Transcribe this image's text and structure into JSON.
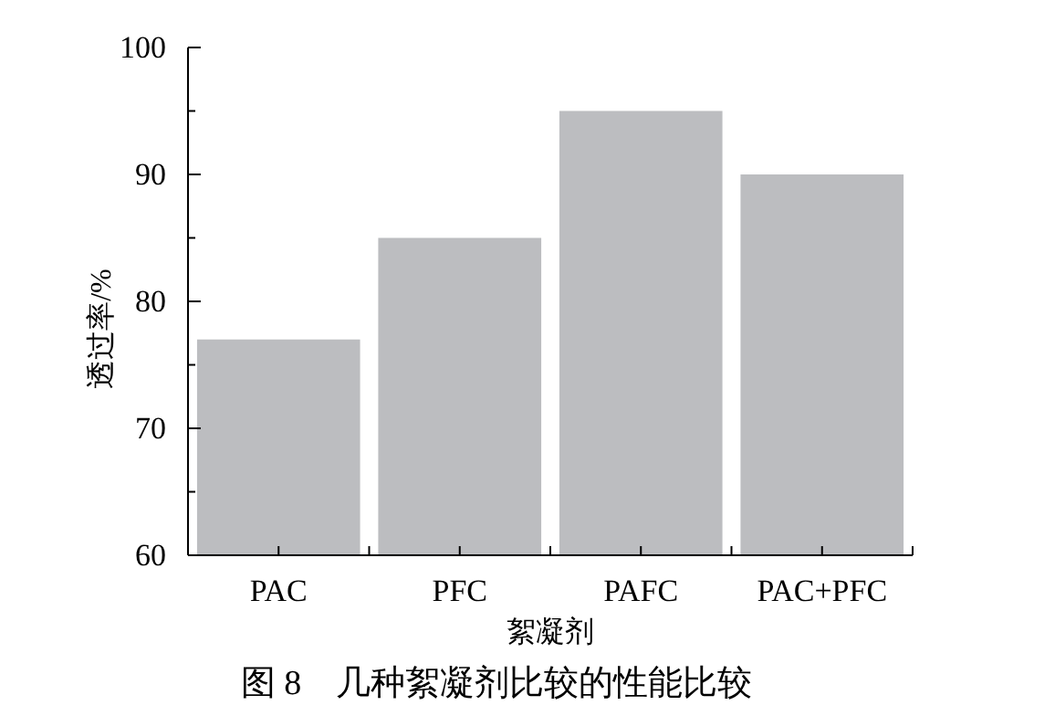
{
  "chart_data": {
    "type": "bar",
    "title": "图 8　几种絮凝剂比较的性能比较",
    "xlabel": "絮凝剂",
    "ylabel": "透过率/%",
    "categories": [
      "PAC",
      "PFC",
      "PAFC",
      "PAC+PFC"
    ],
    "values": [
      77,
      85,
      95,
      90
    ],
    "color": "#bcbdc0",
    "ylim": [
      60,
      100
    ],
    "yticks": [
      60,
      {
        "value": 65,
        "label": null
      },
      70,
      {
        "value": 75,
        "label": null
      },
      80,
      {
        "value": 85,
        "label": null
      },
      90,
      {
        "value": 95,
        "label": null
      },
      100
    ],
    "grid": false
  }
}
